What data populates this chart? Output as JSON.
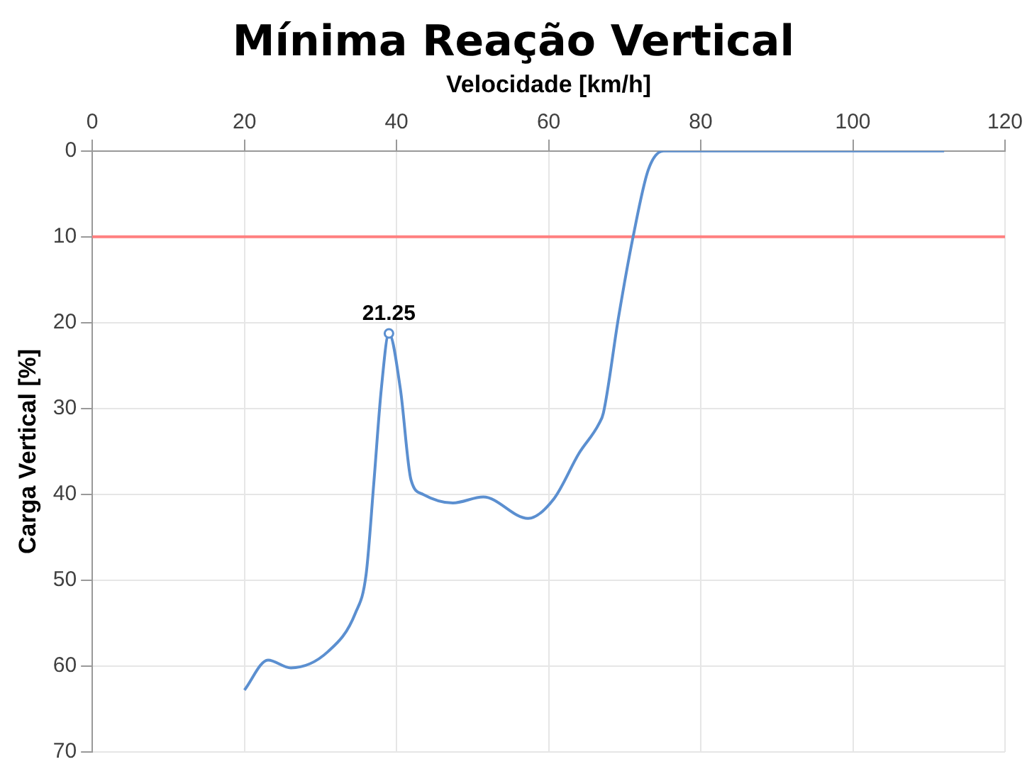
{
  "chart_data": {
    "type": "line",
    "title": "Mínima Reação Vertical",
    "xlabel": "Velocidade [km/h]",
    "ylabel": "Carga Vertical [%]",
    "xlim": [
      0,
      120
    ],
    "xticks": [
      0,
      20,
      40,
      60,
      80,
      100,
      120
    ],
    "ylim": [
      70,
      0
    ],
    "yticks": [
      0,
      10,
      20,
      30,
      40,
      50,
      60,
      70
    ],
    "series": [
      {
        "color": "#5b8fd0",
        "x": [
          20,
          23.1,
          26.1,
          31,
          34.6,
          36,
          37,
          38,
          39,
          40.5,
          41.9,
          43.5,
          47.4,
          51.4,
          57.3,
          60.7,
          64,
          66.6,
          67.2,
          69.2,
          71.1,
          73.1,
          75.1,
          80,
          112
        ],
        "values": [
          62.8,
          59.3,
          60.2,
          58.3,
          53.8,
          49.3,
          38.8,
          27.7,
          21.25,
          27.7,
          38.3,
          40,
          41,
          40.3,
          42.8,
          40.5,
          35.2,
          31.8,
          30.5,
          19.3,
          10,
          2.2,
          0,
          0,
          0
        ]
      }
    ],
    "ref_lines": [
      {
        "axis": "y",
        "value": 10,
        "color": "#ff8080"
      }
    ],
    "annotations": [
      {
        "text": "21.25",
        "x": 39,
        "y": 21.25
      }
    ],
    "grid": true,
    "legend": false,
    "marker": "none",
    "line_style": "solid"
  }
}
